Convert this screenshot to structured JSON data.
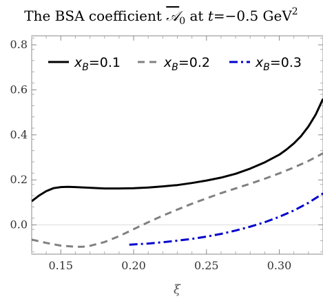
{
  "chart_data": {
    "type": "line",
    "title_prefix": "The BSA coefficient ",
    "title_symbol": "𝒜",
    "title_symbol_sub": "0",
    "title_suffix": " at ",
    "title_t": "t",
    "title_value": "=−0.5 GeV",
    "title_sup": "2",
    "xlabel": "ξ",
    "ylabel": "",
    "xlim": [
      0.13,
      0.33
    ],
    "ylim": [
      -0.13,
      0.84
    ],
    "x_ticks": [
      0.15,
      0.2,
      0.25,
      0.3
    ],
    "x_tick_labels": [
      "0.15",
      "0.20",
      "0.25",
      "0.30"
    ],
    "y_ticks": [
      0.0,
      0.2,
      0.4,
      0.6,
      0.8
    ],
    "y_tick_labels": [
      "0.0",
      "0.2",
      "0.4",
      "0.6",
      "0.8"
    ],
    "legend_position": "top",
    "series": [
      {
        "name_base": "x",
        "name_sub": "B",
        "name_value": "=0.1",
        "color": "#000000",
        "style": "solid",
        "x": [
          0.13,
          0.135,
          0.14,
          0.145,
          0.15,
          0.155,
          0.16,
          0.17,
          0.18,
          0.19,
          0.2,
          0.21,
          0.22,
          0.23,
          0.24,
          0.25,
          0.26,
          0.27,
          0.28,
          0.29,
          0.3,
          0.305,
          0.31,
          0.315,
          0.32,
          0.325,
          0.33
        ],
        "y": [
          0.105,
          0.13,
          0.15,
          0.163,
          0.168,
          0.169,
          0.168,
          0.165,
          0.162,
          0.162,
          0.163,
          0.166,
          0.171,
          0.177,
          0.186,
          0.197,
          0.21,
          0.227,
          0.25,
          0.278,
          0.312,
          0.335,
          0.362,
          0.395,
          0.437,
          0.49,
          0.56
        ]
      },
      {
        "name_base": "x",
        "name_sub": "B",
        "name_value": "=0.2",
        "color": "#808080",
        "style": "dashed",
        "x": [
          0.13,
          0.14,
          0.15,
          0.16,
          0.165,
          0.17,
          0.18,
          0.19,
          0.2,
          0.21,
          0.22,
          0.23,
          0.24,
          0.25,
          0.26,
          0.27,
          0.28,
          0.29,
          0.3,
          0.31,
          0.32,
          0.33
        ],
        "y": [
          -0.065,
          -0.08,
          -0.092,
          -0.097,
          -0.097,
          -0.093,
          -0.076,
          -0.05,
          -0.019,
          0.012,
          0.041,
          0.068,
          0.094,
          0.118,
          0.141,
          0.162,
          0.183,
          0.205,
          0.229,
          0.255,
          0.284,
          0.318
        ]
      },
      {
        "name_base": "x",
        "name_sub": "B",
        "name_value": "=0.3",
        "color": "#0000cc",
        "style": "dashdot",
        "x": [
          0.197,
          0.2,
          0.21,
          0.22,
          0.23,
          0.24,
          0.25,
          0.26,
          0.27,
          0.28,
          0.29,
          0.3,
          0.31,
          0.32,
          0.33
        ],
        "y": [
          -0.088,
          -0.087,
          -0.083,
          -0.077,
          -0.07,
          -0.062,
          -0.052,
          -0.04,
          -0.025,
          -0.008,
          0.012,
          0.036,
          0.064,
          0.098,
          0.14
        ]
      }
    ]
  }
}
